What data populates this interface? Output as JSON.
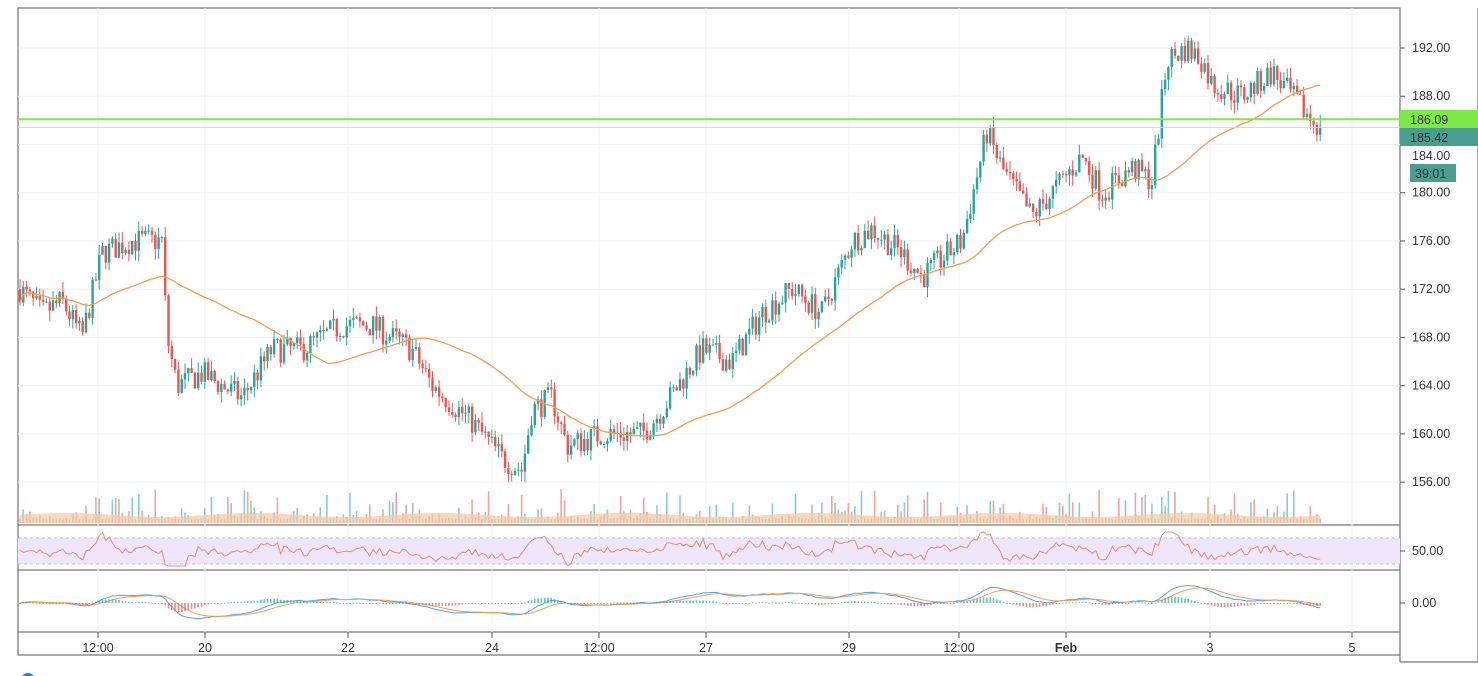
{
  "chart_data": {
    "type": "candlestick",
    "y_axis_ticks": [
      "192.00",
      "188.00",
      "184.00",
      "180.00",
      "176.00",
      "172.00",
      "168.00",
      "164.00",
      "160.00",
      "156.00"
    ],
    "ylim": [
      152.7,
      195.3
    ],
    "x_axis_ticks": [
      "12:00",
      "20",
      "22",
      "24",
      "12:00",
      "27",
      "29",
      "12:00",
      "Feb",
      "3",
      "5"
    ],
    "price_path": [
      [
        0,
        172
      ],
      [
        22,
        170
      ],
      [
        42,
        171
      ],
      [
        62,
        168
      ],
      [
        82,
        175
      ],
      [
        112,
        176
      ],
      [
        142,
        176
      ],
      [
        147,
        168
      ],
      [
        157,
        164
      ],
      [
        182,
        165
      ],
      [
        222,
        163
      ],
      [
        252,
        167
      ],
      [
        282,
        167
      ],
      [
        322,
        169
      ],
      [
        352,
        169
      ],
      [
        392,
        167
      ],
      [
        412,
        164
      ],
      [
        452,
        161
      ],
      [
        482,
        158
      ],
      [
        502,
        157
      ],
      [
        512,
        162
      ],
      [
        532,
        163
      ],
      [
        547,
        159
      ],
      [
        582,
        160
      ],
      [
        622,
        160
      ],
      [
        642,
        162
      ],
      [
        682,
        167
      ],
      [
        712,
        166
      ],
      [
        742,
        170
      ],
      [
        772,
        172
      ],
      [
        802,
        170
      ],
      [
        832,
        176
      ],
      [
        852,
        177
      ],
      [
        882,
        175
      ],
      [
        902,
        173
      ],
      [
        942,
        176
      ],
      [
        967,
        185
      ],
      [
        982,
        182
      ],
      [
        1012,
        178
      ],
      [
        1042,
        181
      ],
      [
        1062,
        183
      ],
      [
        1082,
        180
      ],
      [
        1112,
        182
      ],
      [
        1132,
        181
      ],
      [
        1147,
        191
      ],
      [
        1167,
        192
      ],
      [
        1182,
        191
      ],
      [
        1192,
        189
      ],
      [
        1222,
        188
      ],
      [
        1252,
        190
      ],
      [
        1272,
        188
      ],
      [
        1292,
        186
      ],
      [
        1302,
        185.42
      ]
    ],
    "moving_average_period": 50,
    "horizontal_line": {
      "value": "186.09",
      "color": "#7ee845"
    },
    "last_price": {
      "value": "185.42",
      "countdown": "39:01",
      "color": "#4a9e90"
    },
    "rsi": {
      "tick": "50.00",
      "upper": 70,
      "lower": 30
    },
    "macd": {
      "tick": "0.00"
    },
    "colors": {
      "up": "#26a69a",
      "down": "#ef5350",
      "ma": "#f39c4d",
      "volume_area": "#f7c8a3",
      "rsi_band": "#efe6fb",
      "macd_line": "#4aa3f0",
      "signal_line": "#f39c4d"
    }
  }
}
